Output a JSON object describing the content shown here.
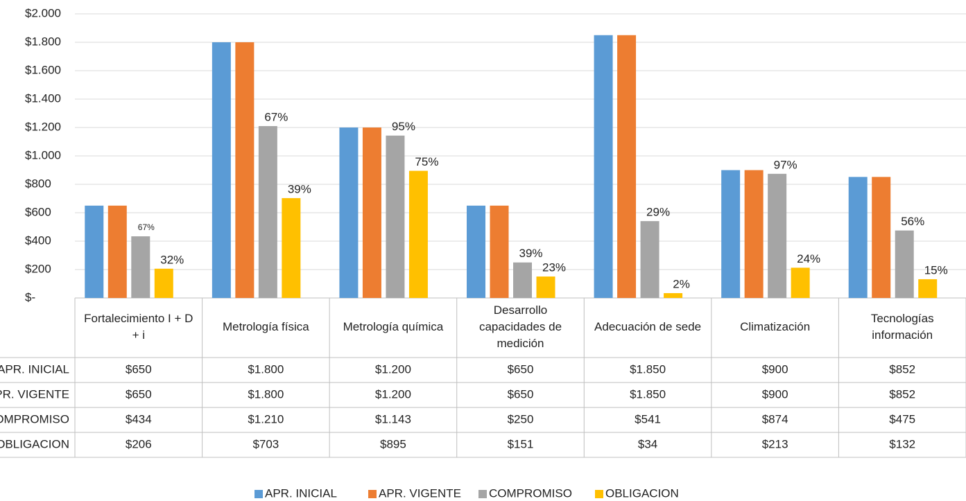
{
  "chart_data": {
    "type": "bar",
    "categories": [
      "Fortalecimiento I + D + i",
      "Metrología física",
      "Metrología química",
      "Desarrollo capacidades de medición",
      "Adecuación de sede",
      "Climatización",
      "Tecnologías información"
    ],
    "series": [
      {
        "name": "APR. INICIAL",
        "color": "#5b9bd5",
        "values": [
          650,
          1800,
          1200,
          650,
          1850,
          900,
          852
        ],
        "value_labels": [
          "$650",
          "$1.800",
          "$1.200",
          "$650",
          "$1.850",
          "$900",
          "$852"
        ]
      },
      {
        "name": "APR. VIGENTE",
        "color": "#ed7d31",
        "values": [
          650,
          1800,
          1200,
          650,
          1850,
          900,
          852
        ],
        "value_labels": [
          "$650",
          "$1.800",
          "$1.200",
          "$650",
          "$1.850",
          "$900",
          "$852"
        ]
      },
      {
        "name": "COMPROMISO",
        "color": "#a5a5a5",
        "values": [
          434,
          1210,
          1143,
          250,
          541,
          874,
          475
        ],
        "value_labels": [
          "$434",
          "$1.210",
          "$1.143",
          "$250",
          "$541",
          "$874",
          "$475"
        ],
        "percent_labels": [
          "67%",
          "67%",
          "95%",
          "39%",
          "29%",
          "97%",
          "56%"
        ]
      },
      {
        "name": "OBLIGACION",
        "color": "#ffc000",
        "values": [
          206,
          703,
          895,
          151,
          34,
          213,
          132
        ],
        "value_labels": [
          "$206",
          "$703",
          "$895",
          "$151",
          "$34",
          "$213",
          "$132"
        ],
        "percent_labels": [
          "32%",
          "39%",
          "75%",
          "23%",
          "2%",
          "24%",
          "15%"
        ]
      }
    ],
    "ylim": [
      0,
      2000
    ],
    "yticks": [
      {
        "value": 0,
        "label": "$-"
      },
      {
        "value": 200,
        "label": "$200"
      },
      {
        "value": 400,
        "label": "$400"
      },
      {
        "value": 600,
        "label": "$600"
      },
      {
        "value": 800,
        "label": "$800"
      },
      {
        "value": 1000,
        "label": "$1.000"
      },
      {
        "value": 1200,
        "label": "$1.200"
      },
      {
        "value": 1400,
        "label": "$1.400"
      },
      {
        "value": 1600,
        "label": "$1.600"
      },
      {
        "value": 1800,
        "label": "$1.800"
      },
      {
        "value": 2000,
        "label": "$2.000"
      }
    ],
    "grid": true,
    "legend": "bottom"
  }
}
